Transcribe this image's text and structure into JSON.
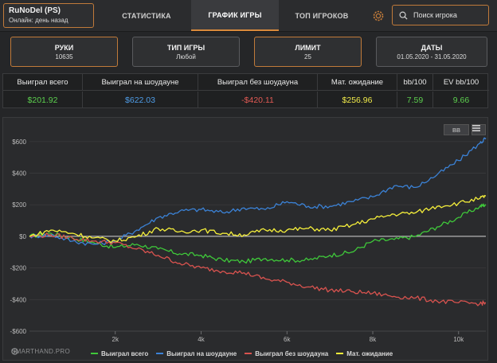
{
  "profile": {
    "name": "RuNoDel (PS)",
    "status": "Онлайн: день назад"
  },
  "tabs": [
    {
      "label": "СТАТИСТИКА",
      "active": false
    },
    {
      "label": "ГРАФИК ИГРЫ",
      "active": true
    },
    {
      "label": "ТОП ИГРОКОВ",
      "active": false
    }
  ],
  "search": {
    "placeholder": "Поиск игрока"
  },
  "filters": [
    {
      "label": "РУКИ",
      "value": "10635"
    },
    {
      "label": "ТИП ИГРЫ",
      "value": "Любой"
    },
    {
      "label": "ЛИМИТ",
      "value": "25"
    },
    {
      "label": "ДАТЫ",
      "value": "01.05.2020 - 31.05.2020"
    }
  ],
  "stats": {
    "headers": [
      "Выиграл всего",
      "Выиграл на шоудауне",
      "Выиграл без шоудауна",
      "Мат. ожидание",
      "bb/100",
      "EV bb/100"
    ],
    "values": [
      "$201.92",
      "$622.03",
      "-$420.11",
      "$256.96",
      "7.59",
      "9.66"
    ],
    "colors": [
      "#5ccf4e",
      "#4f9de8",
      "#e25a54",
      "#f0ea4a",
      "#5ccf4e",
      "#5ccf4e"
    ]
  },
  "chart_controls": {
    "unit_toggle": "BB"
  },
  "brand": "SMARTHAND.PRO",
  "colors": {
    "accent": "#c07a3a",
    "green": "#3fc83a",
    "blue": "#3b82d6",
    "red": "#d9534f",
    "yellow": "#f5ef3a"
  },
  "chart_data": {
    "type": "line",
    "xlabel": "",
    "ylabel": "",
    "xlim": [
      0,
      10635
    ],
    "ylim": [
      -600,
      700
    ],
    "x_ticks": [
      {
        "value": 2000,
        "label": "2k"
      },
      {
        "value": 4000,
        "label": "4k"
      },
      {
        "value": 6000,
        "label": "6k"
      },
      {
        "value": 8000,
        "label": "8k"
      },
      {
        "value": 10000,
        "label": "10k"
      }
    ],
    "y_ticks": [
      {
        "value": 600,
        "label": "$600"
      },
      {
        "value": 400,
        "label": "$400"
      },
      {
        "value": 200,
        "label": "$200"
      },
      {
        "value": 0,
        "label": "$0"
      },
      {
        "value": -200,
        "label": "-$200"
      },
      {
        "value": -400,
        "label": "-$400"
      },
      {
        "value": -600,
        "label": "-$600"
      }
    ],
    "legend_position": "bottom",
    "series": [
      {
        "name": "Выиграл всего",
        "color": "#3fc83a",
        "x": [
          0,
          500,
          1000,
          1500,
          2000,
          2500,
          3000,
          3500,
          4000,
          4500,
          5000,
          5500,
          6000,
          6500,
          7000,
          7500,
          8000,
          8500,
          9000,
          9500,
          10000,
          10500,
          10635
        ],
        "y": [
          0,
          20,
          -10,
          -40,
          -70,
          -50,
          -80,
          -110,
          -120,
          -150,
          -160,
          -140,
          -150,
          -150,
          -120,
          -100,
          -30,
          -20,
          0,
          60,
          120,
          190,
          202
        ]
      },
      {
        "name": "Выиграл на шоудауне",
        "color": "#3b82d6",
        "x": [
          0,
          500,
          1000,
          1500,
          2000,
          2500,
          3000,
          3500,
          4000,
          4500,
          5000,
          5500,
          6000,
          6500,
          7000,
          7500,
          8000,
          8500,
          9000,
          9500,
          10000,
          10500,
          10635
        ],
        "y": [
          0,
          10,
          -30,
          -50,
          -30,
          40,
          120,
          160,
          170,
          150,
          180,
          170,
          220,
          190,
          190,
          220,
          250,
          320,
          310,
          390,
          480,
          590,
          622
        ]
      },
      {
        "name": "Выиграл без шоудауна",
        "color": "#d9534f",
        "x": [
          0,
          500,
          1000,
          1500,
          2000,
          2500,
          3000,
          3500,
          4000,
          4500,
          5000,
          5500,
          6000,
          6500,
          7000,
          7500,
          8000,
          8500,
          9000,
          9500,
          10000,
          10500,
          10635
        ],
        "y": [
          0,
          10,
          -10,
          -30,
          -40,
          -80,
          -120,
          -170,
          -200,
          -220,
          -230,
          -270,
          -290,
          -320,
          -340,
          -350,
          -360,
          -380,
          -390,
          -410,
          -420,
          -425,
          -420
        ]
      },
      {
        "name": "Мат. ожидание",
        "color": "#f5ef3a",
        "x": [
          0,
          500,
          1000,
          1500,
          2000,
          2500,
          3000,
          3500,
          4000,
          4500,
          5000,
          5500,
          6000,
          6500,
          7000,
          7500,
          8000,
          8500,
          9000,
          9500,
          10000,
          10500,
          10635
        ],
        "y": [
          0,
          40,
          20,
          -10,
          -30,
          0,
          50,
          30,
          40,
          20,
          10,
          40,
          40,
          50,
          40,
          70,
          110,
          140,
          150,
          190,
          210,
          240,
          257
        ]
      }
    ]
  }
}
